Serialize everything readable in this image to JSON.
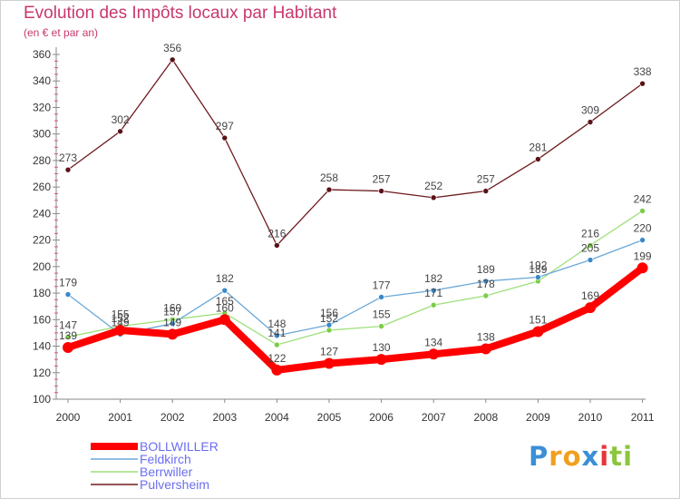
{
  "title": "Evolution des Impôts locaux par Habitant",
  "subtitle": "(en € et par an)",
  "logo": {
    "text": "Proxiti",
    "letters": [
      "P",
      "r",
      "o",
      "x",
      "i",
      "t",
      "i"
    ],
    "colors": [
      "#3a8fd6",
      "#f0a020",
      "#f0a020",
      "#3a8fd6",
      "#e8343a",
      "#8cc63e",
      "#8cc63e"
    ]
  },
  "chart_data": {
    "type": "line",
    "categories": [
      "2000",
      "2001",
      "2002",
      "2003",
      "2004",
      "2005",
      "2006",
      "2007",
      "2008",
      "2009",
      "2010",
      "2011"
    ],
    "ylim": [
      100,
      360
    ],
    "yticks": [
      100,
      120,
      140,
      160,
      180,
      200,
      220,
      240,
      260,
      280,
      300,
      320,
      340,
      360
    ],
    "grid": false,
    "legend_position": "bottom-left",
    "series": [
      {
        "name": "Pulversheim",
        "color": "#6e1a1e",
        "point_color": "#5a1216",
        "values": [
          273,
          302,
          356,
          297,
          216,
          258,
          257,
          252,
          257,
          281,
          309,
          338
        ]
      },
      {
        "name": "Berrwiller",
        "color": "#9ee07a",
        "point_color": "#7ccc46",
        "values": [
          147,
          155,
          160,
          165,
          141,
          152,
          155,
          171,
          178,
          189,
          216,
          242
        ]
      },
      {
        "name": "Feldkirch",
        "color": "#6aa8d8",
        "point_color": "#3a88c8",
        "values": [
          179,
          149,
          157,
          182,
          148,
          156,
          177,
          182,
          189,
          192,
          205,
          220
        ]
      },
      {
        "name": "BOLLWILLER",
        "color": "#ff0000",
        "point_color": "#ff0000",
        "values": [
          139,
          152,
          149,
          160,
          122,
          127,
          130,
          134,
          138,
          151,
          169,
          199
        ]
      }
    ],
    "legend_order": [
      "BOLLWILLER",
      "Feldkirch",
      "Berrwiller",
      "Pulversheim"
    ]
  }
}
